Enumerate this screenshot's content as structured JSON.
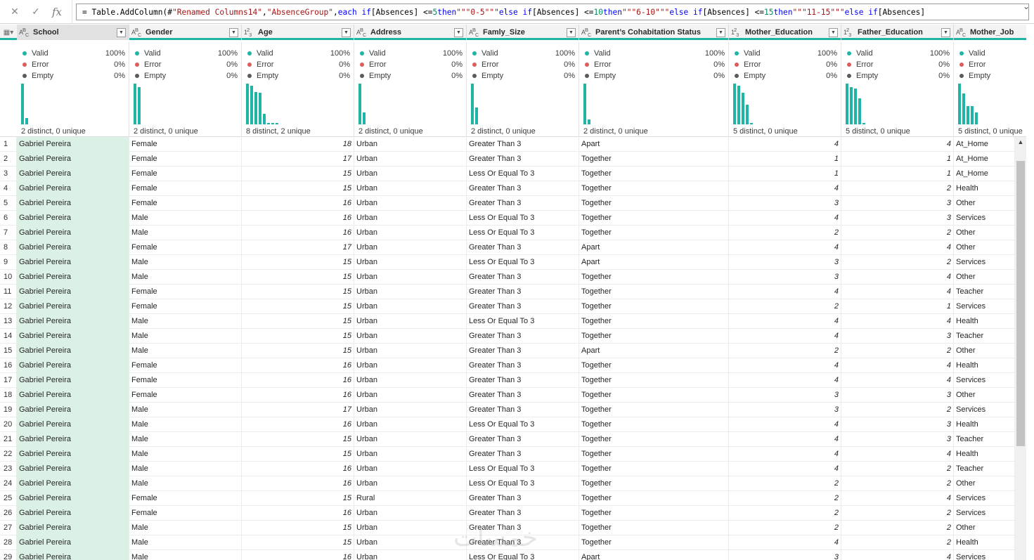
{
  "formula_bar": {
    "cancel_icon": "close-icon",
    "commit_icon": "check-icon",
    "fx_label": "fx",
    "tokens": [
      {
        "t": "= Table.AddColumn(#",
        "c": "fn"
      },
      {
        "t": "\"Renamed Columns14\"",
        "c": "str"
      },
      {
        "t": ", ",
        "c": "fn"
      },
      {
        "t": "\"AbsenceGroup\"",
        "c": "str"
      },
      {
        "t": ", ",
        "c": "fn"
      },
      {
        "t": "each if",
        "c": "kw"
      },
      {
        "t": " [Absences] <= ",
        "c": "fn"
      },
      {
        "t": "5",
        "c": "num"
      },
      {
        "t": " then ",
        "c": "kw"
      },
      {
        "t": "\"\"\"0-5\"\"\"",
        "c": "str"
      },
      {
        "t": " else if",
        "c": "kw"
      },
      {
        "t": " [Absences] <= ",
        "c": "fn"
      },
      {
        "t": "10",
        "c": "num"
      },
      {
        "t": " then ",
        "c": "kw"
      },
      {
        "t": "\"\"\"6-10\"\"\"",
        "c": "str"
      },
      {
        "t": " else if",
        "c": "kw"
      },
      {
        "t": " [Absences] <= ",
        "c": "fn"
      },
      {
        "t": "15",
        "c": "num"
      },
      {
        "t": " then ",
        "c": "kw"
      },
      {
        "t": "\"\"\"11-15\"\"\"",
        "c": "str"
      },
      {
        "t": " else if",
        "c": "kw"
      },
      {
        "t": " [Absences]",
        "c": "fn"
      }
    ],
    "expand_icon": "chevron-down-icon"
  },
  "columns": [
    {
      "name": "School",
      "type": "ABC",
      "num": false,
      "distinct": "2 distinct, 0 unique",
      "bars": [
        1.0,
        0.15
      ]
    },
    {
      "name": "Gender",
      "type": "ABC",
      "num": false,
      "distinct": "2 distinct, 0 unique",
      "bars": [
        1.0,
        0.92
      ]
    },
    {
      "name": "Age",
      "type": "123",
      "num": true,
      "distinct": "8 distinct, 2 unique",
      "bars": [
        1.0,
        0.95,
        0.8,
        0.78,
        0.25,
        0.04,
        0.03,
        0.03
      ]
    },
    {
      "name": "Address",
      "type": "ABC",
      "num": false,
      "distinct": "2 distinct, 0 unique",
      "bars": [
        1.0,
        0.3
      ]
    },
    {
      "name": "Famly_Size",
      "type": "ABC",
      "num": false,
      "distinct": "2 distinct, 0 unique",
      "bars": [
        1.0,
        0.42
      ]
    },
    {
      "name": "Parent’s Cohabitation Status",
      "type": "ABC",
      "num": false,
      "distinct": "2 distinct, 0 unique",
      "bars": [
        1.0,
        0.12
      ]
    },
    {
      "name": "Mother_Education",
      "type": "123",
      "num": true,
      "distinct": "5 distinct, 0 unique",
      "bars": [
        1.0,
        0.95,
        0.78,
        0.48,
        0.03
      ]
    },
    {
      "name": "Father_Education",
      "type": "123",
      "num": true,
      "distinct": "5 distinct, 0 unique",
      "bars": [
        1.0,
        0.92,
        0.88,
        0.63,
        0.03
      ]
    },
    {
      "name": "Mother_Job",
      "type": "ABC",
      "num": false,
      "distinct": "5 distinct, 0 unique",
      "bars": [
        1.0,
        0.75,
        0.45,
        0.45,
        0.3
      ]
    }
  ],
  "quality": {
    "valid_label": "Valid",
    "error_label": "Error",
    "empty_label": "Empty",
    "valid_pct": "100%",
    "error_pct": "0%",
    "empty_pct": "0%"
  },
  "rows": [
    [
      "Gabriel Pereira",
      "Female",
      "18",
      "Urban",
      "Greater Than 3",
      "Apart",
      "4",
      "4",
      "At_Home"
    ],
    [
      "Gabriel Pereira",
      "Female",
      "17",
      "Urban",
      "Greater Than 3",
      "Together",
      "1",
      "1",
      "At_Home"
    ],
    [
      "Gabriel Pereira",
      "Female",
      "15",
      "Urban",
      "Less Or Equal To 3",
      "Together",
      "1",
      "1",
      "At_Home"
    ],
    [
      "Gabriel Pereira",
      "Female",
      "15",
      "Urban",
      "Greater Than 3",
      "Together",
      "4",
      "2",
      "Health"
    ],
    [
      "Gabriel Pereira",
      "Female",
      "16",
      "Urban",
      "Greater Than 3",
      "Together",
      "3",
      "3",
      "Other"
    ],
    [
      "Gabriel Pereira",
      "Male",
      "16",
      "Urban",
      "Less Or Equal To 3",
      "Together",
      "4",
      "3",
      "Services"
    ],
    [
      "Gabriel Pereira",
      "Male",
      "16",
      "Urban",
      "Less Or Equal To 3",
      "Together",
      "2",
      "2",
      "Other"
    ],
    [
      "Gabriel Pereira",
      "Female",
      "17",
      "Urban",
      "Greater Than 3",
      "Apart",
      "4",
      "4",
      "Other"
    ],
    [
      "Gabriel Pereira",
      "Male",
      "15",
      "Urban",
      "Less Or Equal To 3",
      "Apart",
      "3",
      "2",
      "Services"
    ],
    [
      "Gabriel Pereira",
      "Male",
      "15",
      "Urban",
      "Greater Than 3",
      "Together",
      "3",
      "4",
      "Other"
    ],
    [
      "Gabriel Pereira",
      "Female",
      "15",
      "Urban",
      "Greater Than 3",
      "Together",
      "4",
      "4",
      "Teacher"
    ],
    [
      "Gabriel Pereira",
      "Female",
      "15",
      "Urban",
      "Greater Than 3",
      "Together",
      "2",
      "1",
      "Services"
    ],
    [
      "Gabriel Pereira",
      "Male",
      "15",
      "Urban",
      "Less Or Equal To 3",
      "Together",
      "4",
      "4",
      "Health"
    ],
    [
      "Gabriel Pereira",
      "Male",
      "15",
      "Urban",
      "Greater Than 3",
      "Together",
      "4",
      "3",
      "Teacher"
    ],
    [
      "Gabriel Pereira",
      "Male",
      "15",
      "Urban",
      "Greater Than 3",
      "Apart",
      "2",
      "2",
      "Other"
    ],
    [
      "Gabriel Pereira",
      "Female",
      "16",
      "Urban",
      "Greater Than 3",
      "Together",
      "4",
      "4",
      "Health"
    ],
    [
      "Gabriel Pereira",
      "Female",
      "16",
      "Urban",
      "Greater Than 3",
      "Together",
      "4",
      "4",
      "Services"
    ],
    [
      "Gabriel Pereira",
      "Female",
      "16",
      "Urban",
      "Greater Than 3",
      "Together",
      "3",
      "3",
      "Other"
    ],
    [
      "Gabriel Pereira",
      "Male",
      "17",
      "Urban",
      "Greater Than 3",
      "Together",
      "3",
      "2",
      "Services"
    ],
    [
      "Gabriel Pereira",
      "Male",
      "16",
      "Urban",
      "Less Or Equal To 3",
      "Together",
      "4",
      "3",
      "Health"
    ],
    [
      "Gabriel Pereira",
      "Male",
      "15",
      "Urban",
      "Greater Than 3",
      "Together",
      "4",
      "3",
      "Teacher"
    ],
    [
      "Gabriel Pereira",
      "Male",
      "15",
      "Urban",
      "Greater Than 3",
      "Together",
      "4",
      "4",
      "Health"
    ],
    [
      "Gabriel Pereira",
      "Male",
      "16",
      "Urban",
      "Less Or Equal To 3",
      "Together",
      "4",
      "2",
      "Teacher"
    ],
    [
      "Gabriel Pereira",
      "Male",
      "16",
      "Urban",
      "Less Or Equal To 3",
      "Together",
      "2",
      "2",
      "Other"
    ],
    [
      "Gabriel Pereira",
      "Female",
      "15",
      "Rural",
      "Greater Than 3",
      "Together",
      "2",
      "4",
      "Services"
    ],
    [
      "Gabriel Pereira",
      "Female",
      "16",
      "Urban",
      "Greater Than 3",
      "Together",
      "2",
      "2",
      "Services"
    ],
    [
      "Gabriel Pereira",
      "Male",
      "15",
      "Urban",
      "Greater Than 3",
      "Together",
      "2",
      "2",
      "Other"
    ],
    [
      "Gabriel Pereira",
      "Male",
      "15",
      "Urban",
      "Greater Than 3",
      "Together",
      "4",
      "2",
      "Health"
    ],
    [
      "Gabriel Pereira",
      "Male",
      "16",
      "Urban",
      "Less Or Equal To 3",
      "Apart",
      "3",
      "4",
      "Services"
    ]
  ],
  "colors": {
    "accent": "#1fb5a5",
    "selected_column": "#dbf1e6",
    "error": "#e05c5c"
  }
}
